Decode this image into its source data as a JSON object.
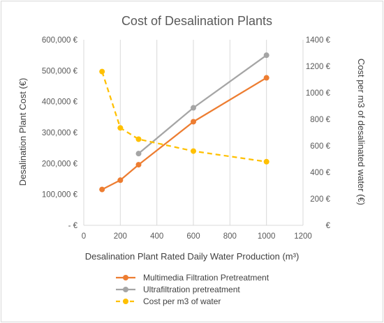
{
  "chart_data": {
    "type": "line",
    "title": "Cost of Desalination Plants",
    "xlabel": "Desalination Plant Rated Daily Water Production (m³)",
    "ylabel": "Desalination Plant Cost (€)",
    "y2label": "Cost per m3 of desalinated water (€)",
    "xlim": [
      0,
      1200
    ],
    "ylim": [
      0,
      600000
    ],
    "y2lim": [
      0,
      1400
    ],
    "x_ticks": [
      "0",
      "200",
      "400",
      "600",
      "800",
      "1000",
      "1200"
    ],
    "y_ticks": [
      "-  €",
      "100,000 €",
      "200,000 €",
      "300,000 €",
      "400,000 €",
      "500,000 €",
      "600,000 €"
    ],
    "y2_ticks": [
      "€",
      "200 €",
      "400 €",
      "600 €",
      "800 €",
      "1000 €",
      "1200 €",
      "1400 €"
    ],
    "grid": "vertical",
    "legend_position": "bottom",
    "series": [
      {
        "name": "Multimedia Filtration Pretreatment",
        "axis": "left",
        "color": "#ed7d31",
        "style": "solid",
        "x": [
          100,
          200,
          300,
          600,
          1000
        ],
        "values": [
          116000,
          146000,
          196000,
          335000,
          477000
        ]
      },
      {
        "name": "Ultrafiltration pretreatment",
        "axis": "left",
        "color": "#a5a5a5",
        "style": "solid",
        "x": [
          300,
          600,
          1000
        ],
        "values": [
          232000,
          380000,
          550000
        ]
      },
      {
        "name": "Cost per m3 of water",
        "axis": "right",
        "color": "#ffc000",
        "style": "dashed",
        "x": [
          100,
          200,
          300,
          600,
          1000
        ],
        "values": [
          1160,
          735,
          650,
          560,
          480
        ]
      }
    ]
  }
}
